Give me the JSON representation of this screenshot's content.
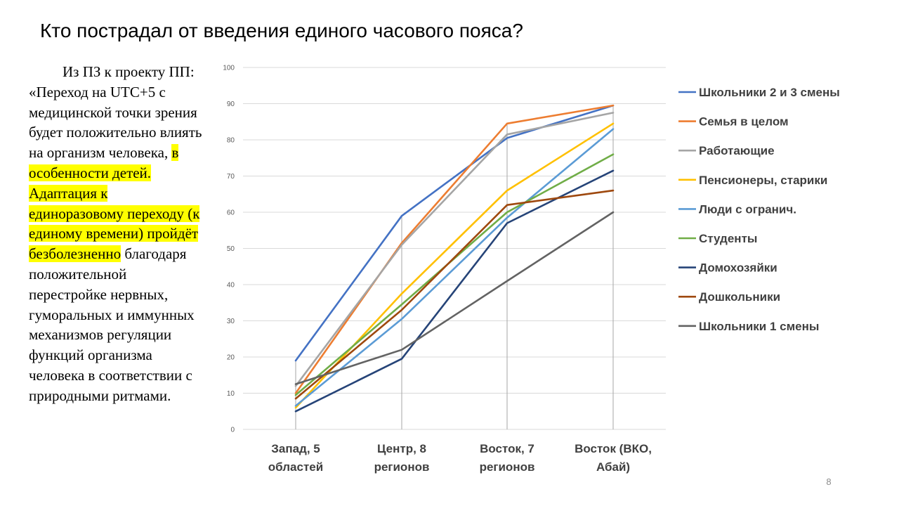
{
  "slide": {
    "title": "Кто пострадал от введения единого часового пояса?",
    "page_number": "8"
  },
  "quote": {
    "part1": "Из ПЗ к проекту ПП: «Переход на UTC+5 с медицинской точки зрения будет положительно влиять на организм человека,",
    "part2_highlight": "в особенности детей. Адаптация к единоразовому переходу (к единому времени) пройдёт безболезненно",
    "part3": "благодаря положительной перестройке нервных, гуморальных и иммунных механизмов регуляции функций организма человека в соответствии с природными ритмами."
  },
  "chart_data": {
    "type": "line",
    "title": "",
    "xlabel": "",
    "ylabel": "",
    "ylim": [
      0,
      100
    ],
    "yticks": [
      "0",
      "10",
      "20",
      "30",
      "40",
      "50",
      "60",
      "70",
      "80",
      "90",
      "100"
    ],
    "grid": "horizontal",
    "legend": "right",
    "categories": [
      [
        "Запад, 5",
        "областей"
      ],
      [
        "Центр, 8",
        "регионов"
      ],
      [
        "Восток, 7",
        "регионов"
      ],
      [
        "Восток (ВКО,",
        "Абай)"
      ]
    ],
    "series": [
      {
        "name": "Школьники  2 и 3 смены",
        "color": "#4472c4",
        "values": [
          19,
          59,
          80.5,
          89.5
        ]
      },
      {
        "name": "Семья в целом",
        "color": "#ed7d31",
        "values": [
          10,
          51.5,
          84.5,
          89.5
        ]
      },
      {
        "name": "Работающие",
        "color": "#a5a5a5",
        "values": [
          12,
          51,
          81.5,
          87.5
        ]
      },
      {
        "name": "Пенсионеры, старики",
        "color": "#ffc000",
        "values": [
          6,
          37.5,
          66,
          84.5
        ]
      },
      {
        "name": "Люди с огранич.",
        "color": "#5b9bd5",
        "values": [
          6.5,
          30.5,
          58.5,
          83
        ]
      },
      {
        "name": "Студенты",
        "color": "#70ad47",
        "values": [
          9.5,
          34.5,
          60,
          76
        ]
      },
      {
        "name": "Домохозяйки",
        "color": "#264478",
        "values": [
          5,
          19.5,
          57,
          71.5
        ]
      },
      {
        "name": "Дошкольники",
        "color": "#9e480e",
        "values": [
          8.5,
          33,
          62,
          66
        ]
      },
      {
        "name": "Школьники  1 смены",
        "color": "#636363",
        "values": [
          12.5,
          22,
          41,
          60
        ]
      }
    ]
  }
}
